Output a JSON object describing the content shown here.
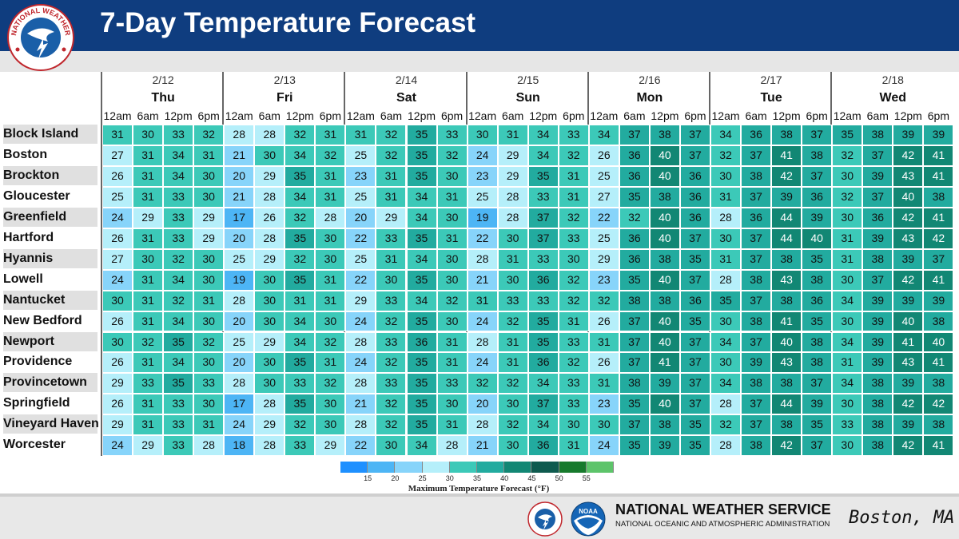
{
  "header": {
    "title": "7-Day Temperature Forecast"
  },
  "logos": {
    "nws_text": "NATIONAL WEATHER SERVICE",
    "noaa_text": "NOAA"
  },
  "footer": {
    "agency": "NATIONAL WEATHER SERVICE",
    "parent": "NATIONAL OCEANIC AND ATMOSPHERIC ADMINISTRATION",
    "office": "Boston, MA"
  },
  "colors": {
    "header_bg": "#0f3d7f",
    "scale": [
      "#1e90ff",
      "#4db5f5",
      "#87d4fa",
      "#b5effa",
      "#3cc9b8",
      "#22ab9f",
      "#128774",
      "#0e5a4e",
      "#177a2c",
      "#2e8b3e",
      "#5dc46a"
    ]
  },
  "chart_data": {
    "type": "table",
    "title": "7-Day Temperature Forecast",
    "days": [
      {
        "date": "2/12",
        "name": "Thu"
      },
      {
        "date": "2/13",
        "name": "Fri"
      },
      {
        "date": "2/14",
        "name": "Sat"
      },
      {
        "date": "2/15",
        "name": "Sun"
      },
      {
        "date": "2/16",
        "name": "Mon"
      },
      {
        "date": "2/17",
        "name": "Tue"
      },
      {
        "date": "2/18",
        "name": "Wed"
      }
    ],
    "times": [
      "12am",
      "6am",
      "12pm",
      "6pm"
    ],
    "rows": [
      {
        "city": "Block Island",
        "values": [
          31,
          30,
          33,
          32,
          28,
          28,
          32,
          31,
          31,
          32,
          35,
          33,
          30,
          31,
          34,
          33,
          34,
          37,
          38,
          37,
          34,
          36,
          38,
          37,
          35,
          38,
          39,
          39
        ]
      },
      {
        "city": "Boston",
        "values": [
          27,
          31,
          34,
          31,
          21,
          30,
          34,
          32,
          25,
          32,
          35,
          32,
          24,
          29,
          34,
          32,
          26,
          36,
          40,
          37,
          32,
          37,
          41,
          38,
          32,
          37,
          42,
          41
        ]
      },
      {
        "city": "Brockton",
        "values": [
          26,
          31,
          34,
          30,
          20,
          29,
          35,
          31,
          23,
          31,
          35,
          30,
          23,
          29,
          35,
          31,
          25,
          36,
          40,
          36,
          30,
          38,
          42,
          37,
          30,
          39,
          43,
          41
        ]
      },
      {
        "city": "Gloucester",
        "values": [
          25,
          31,
          33,
          30,
          21,
          28,
          34,
          31,
          25,
          31,
          34,
          31,
          25,
          28,
          33,
          31,
          27,
          35,
          38,
          36,
          31,
          37,
          39,
          36,
          32,
          37,
          40,
          38
        ]
      },
      {
        "city": "Greenfield",
        "values": [
          24,
          29,
          33,
          29,
          17,
          26,
          32,
          28,
          20,
          29,
          34,
          30,
          19,
          28,
          37,
          32,
          22,
          32,
          40,
          36,
          28,
          36,
          44,
          39,
          30,
          36,
          42,
          41
        ]
      },
      {
        "city": "Hartford",
        "values": [
          26,
          31,
          33,
          29,
          20,
          28,
          35,
          30,
          22,
          33,
          35,
          31,
          22,
          30,
          37,
          33,
          25,
          36,
          40,
          37,
          30,
          37,
          44,
          40,
          31,
          39,
          43,
          42
        ]
      },
      {
        "city": "Hyannis",
        "values": [
          27,
          30,
          32,
          30,
          25,
          29,
          32,
          30,
          25,
          31,
          34,
          30,
          28,
          31,
          33,
          30,
          29,
          36,
          38,
          35,
          31,
          37,
          38,
          35,
          31,
          38,
          39,
          37
        ]
      },
      {
        "city": "Lowell",
        "values": [
          24,
          31,
          34,
          30,
          19,
          30,
          35,
          31,
          22,
          30,
          35,
          30,
          21,
          30,
          36,
          32,
          23,
          35,
          40,
          37,
          28,
          38,
          43,
          38,
          30,
          37,
          42,
          41
        ]
      },
      {
        "city": "Nantucket",
        "values": [
          30,
          31,
          32,
          31,
          28,
          30,
          31,
          31,
          29,
          33,
          34,
          32,
          31,
          33,
          33,
          32,
          32,
          38,
          38,
          36,
          35,
          37,
          38,
          36,
          34,
          39,
          39,
          39
        ]
      },
      {
        "city": "New Bedford",
        "values": [
          26,
          31,
          34,
          30,
          20,
          30,
          34,
          30,
          24,
          32,
          35,
          30,
          24,
          32,
          35,
          31,
          26,
          37,
          40,
          35,
          30,
          38,
          41,
          35,
          30,
          39,
          40,
          38
        ]
      },
      {
        "city": "Newport",
        "values": [
          30,
          32,
          35,
          32,
          25,
          29,
          34,
          32,
          28,
          33,
          36,
          31,
          28,
          31,
          35,
          33,
          31,
          37,
          40,
          37,
          34,
          37,
          40,
          38,
          34,
          39,
          41,
          40
        ]
      },
      {
        "city": "Providence",
        "values": [
          26,
          31,
          34,
          30,
          20,
          30,
          35,
          31,
          24,
          32,
          35,
          31,
          24,
          31,
          36,
          32,
          26,
          37,
          41,
          37,
          30,
          39,
          43,
          38,
          31,
          39,
          43,
          41
        ]
      },
      {
        "city": "Provincetown",
        "values": [
          29,
          33,
          35,
          33,
          28,
          30,
          33,
          32,
          28,
          33,
          35,
          33,
          32,
          32,
          34,
          33,
          31,
          38,
          39,
          37,
          34,
          38,
          38,
          37,
          34,
          38,
          39,
          38
        ]
      },
      {
        "city": "Springfield",
        "values": [
          26,
          31,
          33,
          30,
          17,
          28,
          35,
          30,
          21,
          32,
          35,
          30,
          20,
          30,
          37,
          33,
          23,
          35,
          40,
          37,
          28,
          37,
          44,
          39,
          30,
          38,
          42,
          42
        ]
      },
      {
        "city": "Vineyard Haven",
        "values": [
          29,
          31,
          33,
          31,
          24,
          29,
          32,
          30,
          28,
          32,
          35,
          31,
          28,
          32,
          34,
          30,
          30,
          37,
          38,
          35,
          32,
          37,
          38,
          35,
          33,
          38,
          39,
          38
        ]
      },
      {
        "city": "Worcester",
        "values": [
          24,
          29,
          33,
          28,
          18,
          28,
          33,
          29,
          22,
          30,
          34,
          28,
          21,
          30,
          36,
          31,
          24,
          35,
          39,
          35,
          28,
          38,
          42,
          37,
          30,
          38,
          42,
          41
        ]
      }
    ],
    "legend": {
      "title": "Maximum Temperature Forecast (°F)",
      "ticks": [
        15,
        20,
        25,
        30,
        35,
        40,
        45,
        50,
        55
      ]
    }
  }
}
